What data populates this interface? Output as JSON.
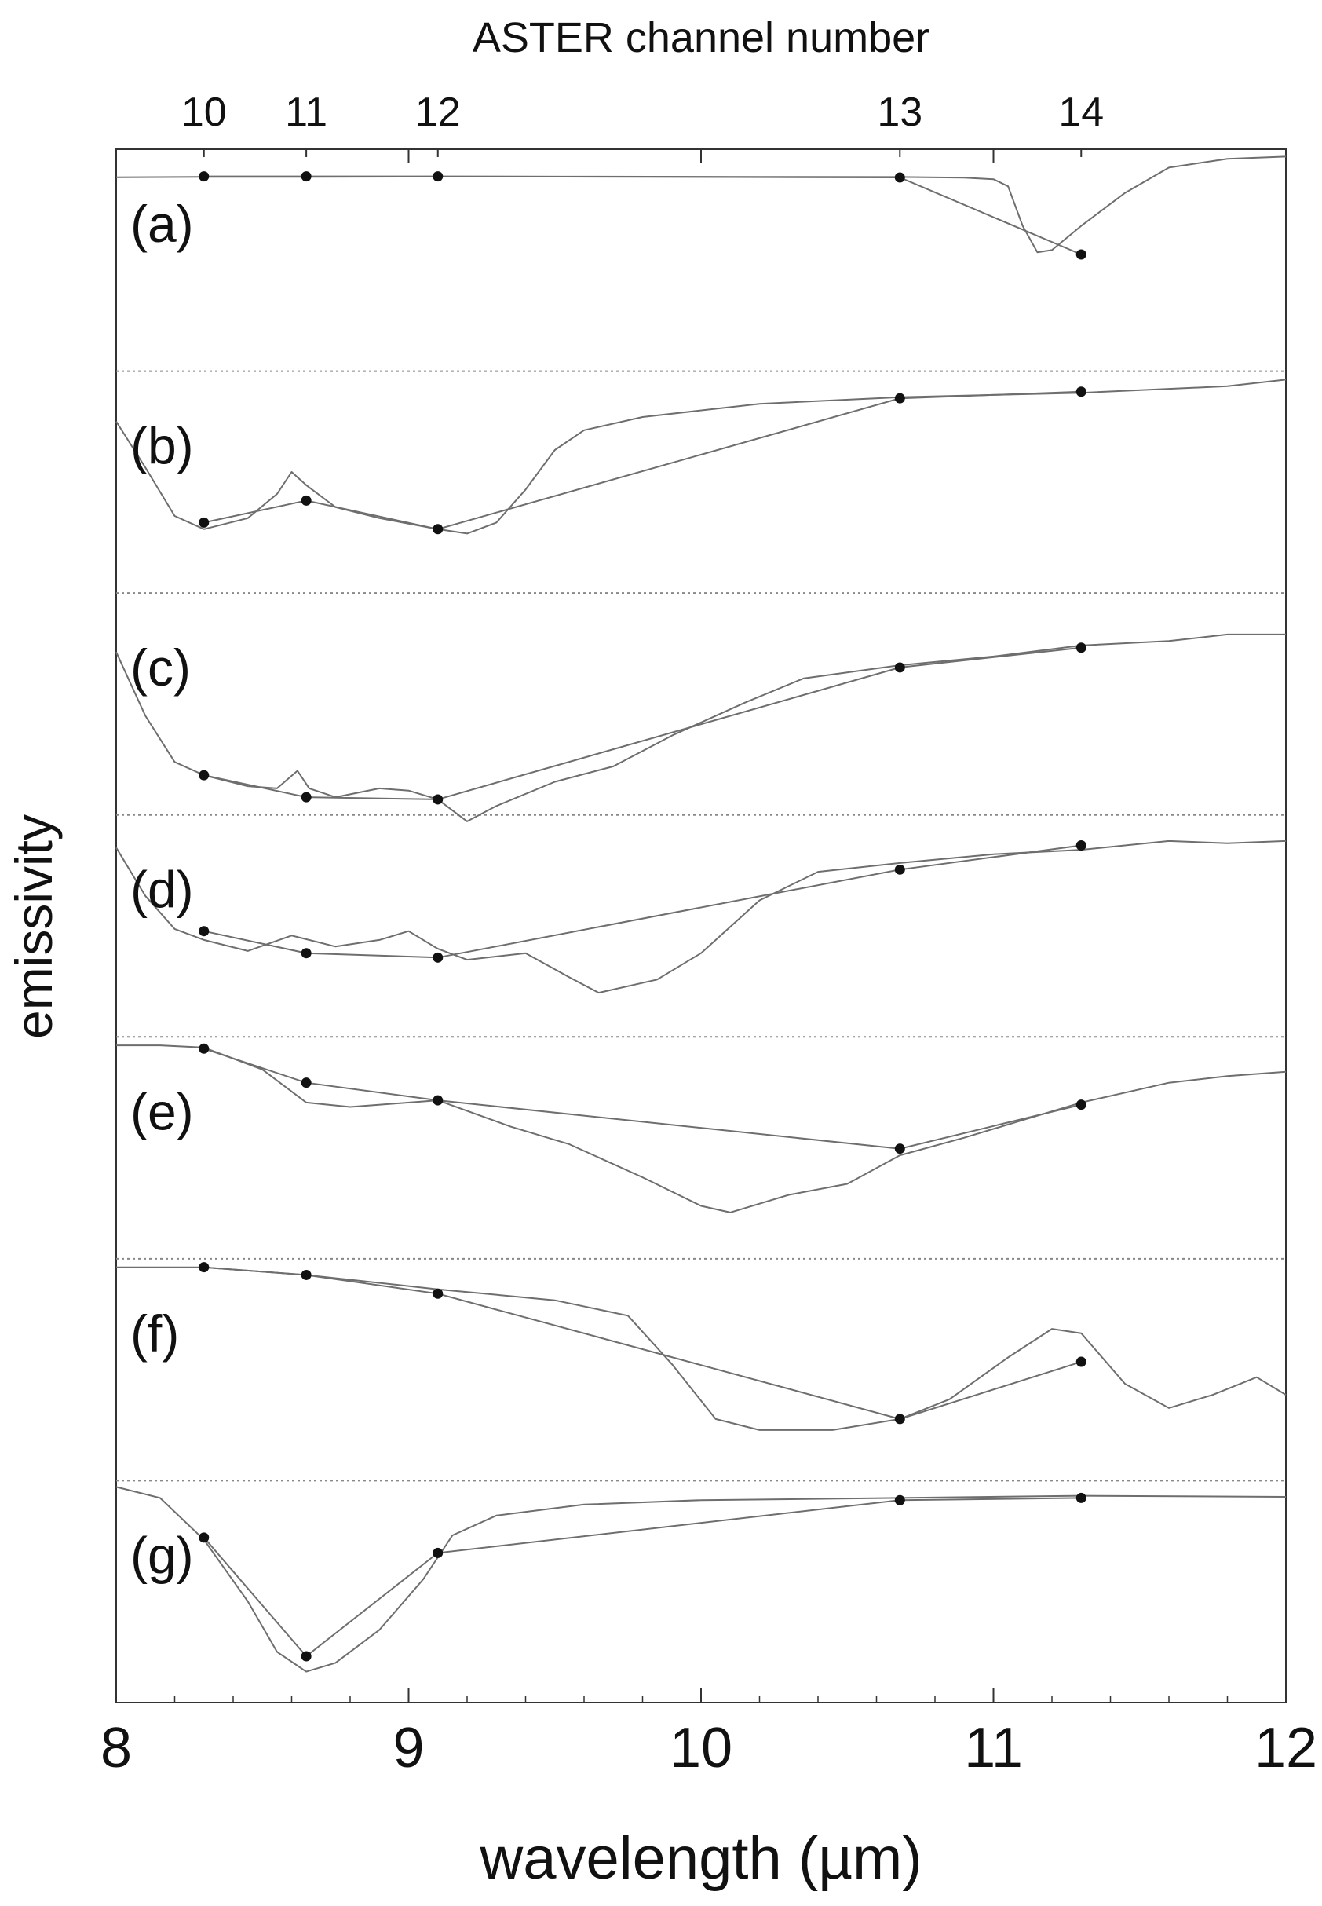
{
  "chart_data": {
    "type": "line",
    "title": "",
    "top_axis_label": "ASTER channel number",
    "xlabel": "wavelength (µm)",
    "ylabel": "emissivity",
    "xlim": [
      8,
      12
    ],
    "x_ticks": [
      8,
      9,
      10,
      11,
      12
    ],
    "x_tick_labels": [
      "8",
      "9",
      "10",
      "11",
      "12"
    ],
    "grid": false,
    "separators": "dotted",
    "channels": [
      {
        "label": "10",
        "wavelength": 8.3
      },
      {
        "label": "11",
        "wavelength": 8.65
      },
      {
        "label": "12",
        "wavelength": 9.1
      },
      {
        "label": "13",
        "wavelength": 10.68
      },
      {
        "label": "14",
        "wavelength": 11.3
      }
    ],
    "colors": {
      "line": "#6e6e6e",
      "marker": "#111111",
      "separator": "#888888",
      "axis": "#333333"
    },
    "panels": [
      {
        "label": "(a)",
        "spectrum": [
          [
            8.0,
            0.99
          ],
          [
            8.3,
            0.97
          ],
          [
            8.65,
            0.97
          ],
          [
            9.1,
            0.96
          ],
          [
            9.6,
            0.96
          ],
          [
            10.2,
            0.97
          ],
          [
            10.68,
            0.98
          ],
          [
            10.9,
            1.01
          ],
          [
            11.0,
            1.08
          ],
          [
            11.05,
            1.4
          ],
          [
            11.1,
            3.2
          ],
          [
            11.15,
            4.4
          ],
          [
            11.2,
            4.3
          ],
          [
            11.3,
            3.2
          ],
          [
            11.45,
            1.7
          ],
          [
            11.6,
            0.55
          ],
          [
            11.8,
            0.15
          ],
          [
            12.0,
            0.05
          ]
        ],
        "channel_values": [
          0.95,
          0.95,
          0.95,
          1.0,
          4.5
        ]
      },
      {
        "label": "(b)",
        "spectrum": [
          [
            8.0,
            2.0
          ],
          [
            8.1,
            4.1
          ],
          [
            8.2,
            6.3
          ],
          [
            8.3,
            6.9
          ],
          [
            8.45,
            6.4
          ],
          [
            8.55,
            5.3
          ],
          [
            8.6,
            4.3
          ],
          [
            8.65,
            4.9
          ],
          [
            8.75,
            5.9
          ],
          [
            8.9,
            6.4
          ],
          [
            9.1,
            6.9
          ],
          [
            9.2,
            7.1
          ],
          [
            9.3,
            6.6
          ],
          [
            9.4,
            5.1
          ],
          [
            9.5,
            3.3
          ],
          [
            9.6,
            2.4
          ],
          [
            9.8,
            1.8
          ],
          [
            10.2,
            1.2
          ],
          [
            10.68,
            0.9
          ],
          [
            11.3,
            0.7
          ],
          [
            11.8,
            0.4
          ],
          [
            12.0,
            0.1
          ]
        ],
        "channel_values": [
          6.6,
          5.6,
          6.9,
          0.95,
          0.65
        ]
      },
      {
        "label": "(c)",
        "spectrum": [
          [
            8.0,
            2.4
          ],
          [
            8.1,
            5.3
          ],
          [
            8.2,
            7.4
          ],
          [
            8.3,
            8.0
          ],
          [
            8.45,
            8.5
          ],
          [
            8.55,
            8.6
          ],
          [
            8.62,
            7.8
          ],
          [
            8.66,
            8.6
          ],
          [
            8.75,
            9.0
          ],
          [
            8.9,
            8.6
          ],
          [
            9.0,
            8.7
          ],
          [
            9.1,
            9.1
          ],
          [
            9.2,
            10.1
          ],
          [
            9.3,
            9.4
          ],
          [
            9.5,
            8.3
          ],
          [
            9.7,
            7.6
          ],
          [
            9.9,
            6.2
          ],
          [
            10.15,
            4.7
          ],
          [
            10.35,
            3.6
          ],
          [
            10.68,
            3.0
          ],
          [
            11.0,
            2.6
          ],
          [
            11.3,
            2.1
          ],
          [
            11.6,
            1.9
          ],
          [
            11.8,
            1.6
          ],
          [
            12.0,
            1.6
          ]
        ],
        "channel_values": [
          8.0,
          9.0,
          9.1,
          3.1,
          2.2
        ]
      },
      {
        "label": "(d)",
        "spectrum": [
          [
            8.0,
            1.2
          ],
          [
            8.1,
            3.4
          ],
          [
            8.2,
            4.9
          ],
          [
            8.3,
            5.4
          ],
          [
            8.45,
            5.9
          ],
          [
            8.6,
            5.2
          ],
          [
            8.75,
            5.7
          ],
          [
            8.9,
            5.4
          ],
          [
            9.0,
            5.0
          ],
          [
            9.1,
            5.8
          ],
          [
            9.2,
            6.3
          ],
          [
            9.4,
            6.0
          ],
          [
            9.55,
            7.1
          ],
          [
            9.65,
            7.8
          ],
          [
            9.85,
            7.2
          ],
          [
            10.0,
            6.0
          ],
          [
            10.2,
            3.6
          ],
          [
            10.4,
            2.3
          ],
          [
            10.68,
            1.9
          ],
          [
            11.0,
            1.5
          ],
          [
            11.3,
            1.3
          ],
          [
            11.6,
            0.9
          ],
          [
            11.8,
            1.0
          ],
          [
            12.0,
            0.9
          ]
        ],
        "channel_values": [
          5.0,
          6.0,
          6.2,
          2.2,
          1.1
        ]
      },
      {
        "label": "(e)",
        "spectrum": [
          [
            8.0,
            0.1
          ],
          [
            8.15,
            0.1
          ],
          [
            8.3,
            0.2
          ],
          [
            8.5,
            1.2
          ],
          [
            8.65,
            2.7
          ],
          [
            8.8,
            2.9
          ],
          [
            9.1,
            2.6
          ],
          [
            9.35,
            3.8
          ],
          [
            9.55,
            4.6
          ],
          [
            9.8,
            6.1
          ],
          [
            10.0,
            7.4
          ],
          [
            10.1,
            7.7
          ],
          [
            10.3,
            6.9
          ],
          [
            10.5,
            6.4
          ],
          [
            10.68,
            5.1
          ],
          [
            10.9,
            4.3
          ],
          [
            11.1,
            3.5
          ],
          [
            11.3,
            2.7
          ],
          [
            11.6,
            1.8
          ],
          [
            11.8,
            1.5
          ],
          [
            12.0,
            1.3
          ]
        ],
        "channel_values": [
          0.25,
          1.8,
          2.6,
          4.8,
          2.8
        ]
      },
      {
        "label": "(f)",
        "spectrum": [
          [
            8.0,
            0.1
          ],
          [
            8.3,
            0.1
          ],
          [
            8.65,
            0.45
          ],
          [
            9.1,
            1.1
          ],
          [
            9.5,
            1.6
          ],
          [
            9.75,
            2.3
          ],
          [
            9.9,
            4.5
          ],
          [
            10.05,
            7.0
          ],
          [
            10.2,
            7.5
          ],
          [
            10.45,
            7.5
          ],
          [
            10.68,
            7.0
          ],
          [
            10.85,
            6.1
          ],
          [
            11.05,
            4.2
          ],
          [
            11.2,
            2.9
          ],
          [
            11.3,
            3.1
          ],
          [
            11.45,
            5.4
          ],
          [
            11.6,
            6.5
          ],
          [
            11.75,
            5.9
          ],
          [
            11.9,
            5.1
          ],
          [
            12.0,
            5.9
          ]
        ],
        "channel_values": [
          0.1,
          0.45,
          1.3,
          7.0,
          4.4
        ]
      },
      {
        "label": "(g)",
        "spectrum": [
          [
            8.0,
            0.0
          ],
          [
            8.15,
            0.5
          ],
          [
            8.3,
            2.4
          ],
          [
            8.45,
            5.2
          ],
          [
            8.55,
            7.5
          ],
          [
            8.65,
            8.4
          ],
          [
            8.75,
            8.0
          ],
          [
            8.9,
            6.5
          ],
          [
            9.05,
            4.2
          ],
          [
            9.15,
            2.2
          ],
          [
            9.3,
            1.3
          ],
          [
            9.6,
            0.8
          ],
          [
            10.0,
            0.6
          ],
          [
            10.68,
            0.5
          ],
          [
            11.3,
            0.4
          ],
          [
            12.0,
            0.45
          ]
        ],
        "channel_values": [
          2.3,
          7.7,
          3.0,
          0.6,
          0.5
        ]
      }
    ]
  }
}
